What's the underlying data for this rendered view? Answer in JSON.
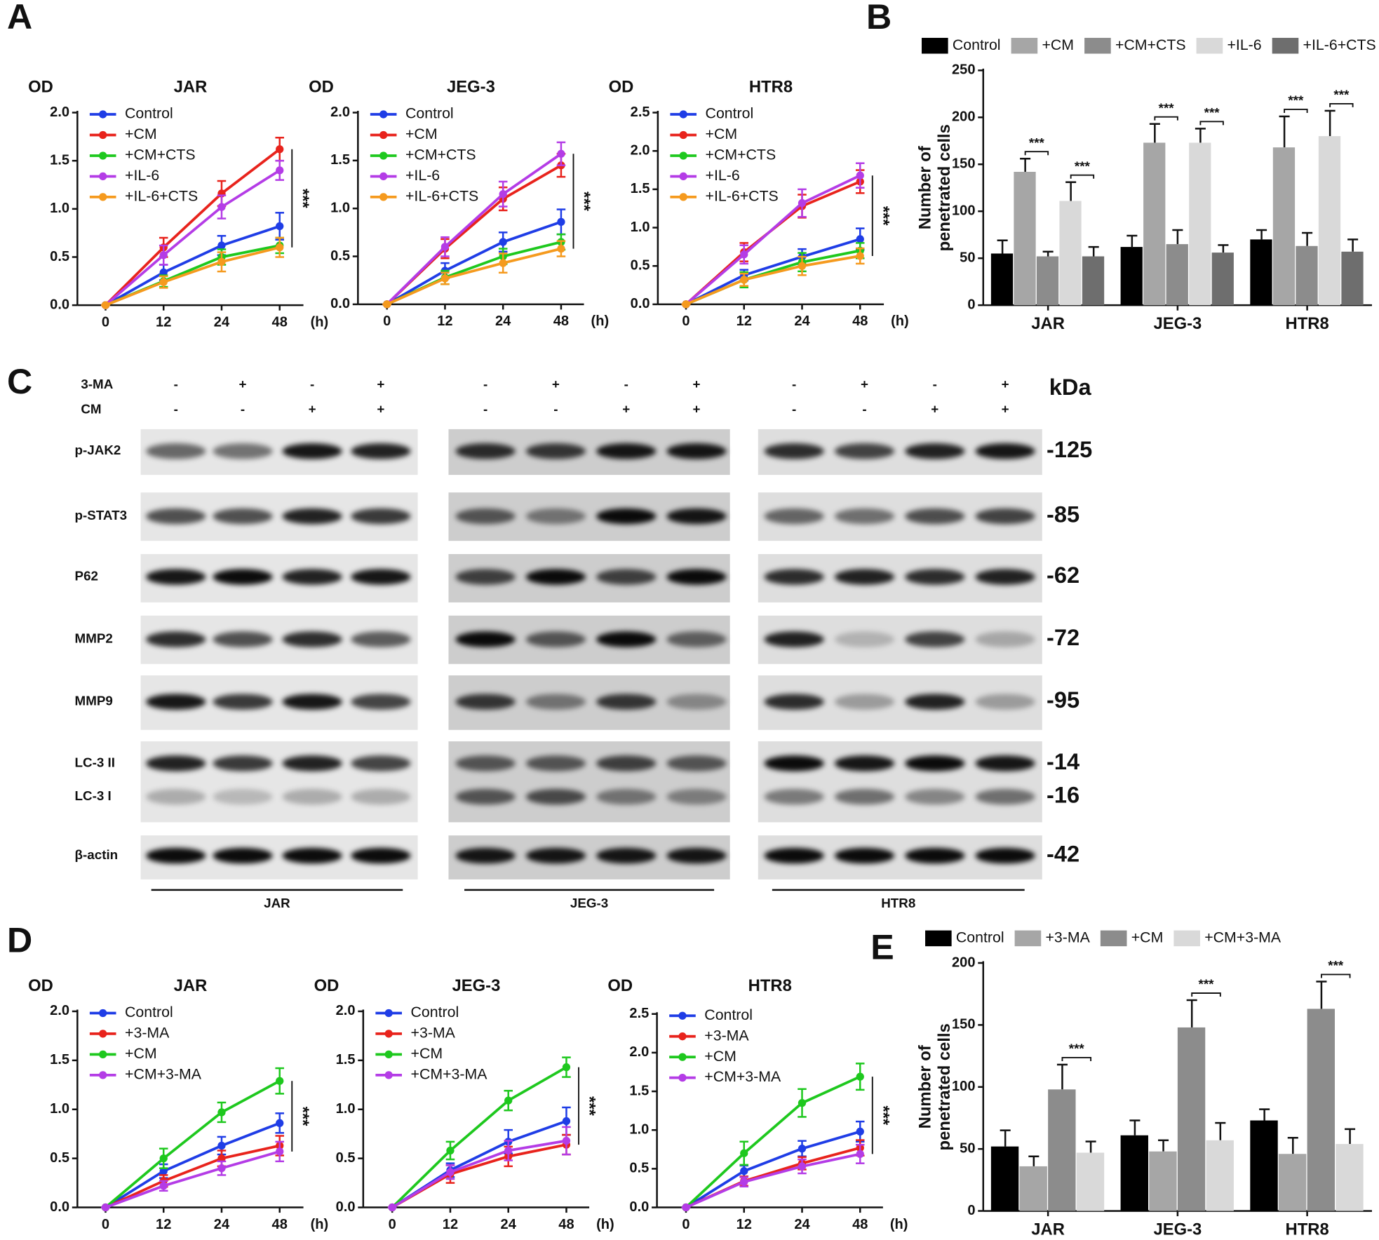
{
  "panel_labels": [
    "A",
    "B",
    "C",
    "D",
    "E"
  ],
  "chart_data": [
    {
      "type": "line",
      "title": "JAR",
      "ylabel": "OD",
      "xlabel": "(h)",
      "categories": [
        "0",
        "12",
        "24",
        "48"
      ],
      "ylim": [
        0,
        2.0
      ],
      "yticks": [
        {
          "value": 0,
          "label": "0.0"
        },
        0.5,
        {
          "value": 1,
          "label": "1.0"
        },
        1.5,
        {
          "value": 2,
          "label": "2.0"
        }
      ],
      "annotation": "***",
      "series": [
        {
          "name": "Control",
          "color": "#1f3de6",
          "values": [
            0,
            0.34,
            0.62,
            0.82
          ],
          "errors": [
            0,
            0.08,
            0.1,
            0.14
          ]
        },
        {
          "name": "+CM",
          "color": "#e8231c",
          "values": [
            0,
            0.6,
            1.16,
            1.62
          ],
          "errors": [
            0,
            0.1,
            0.13,
            0.12
          ]
        },
        {
          "name": "+CM+CTS",
          "color": "#1ec81e",
          "values": [
            0,
            0.25,
            0.5,
            0.62
          ],
          "errors": [
            0,
            0.06,
            0.08,
            0.08
          ]
        },
        {
          "name": "+IL-6",
          "color": "#b43ce6",
          "values": [
            0,
            0.52,
            1.02,
            1.4
          ],
          "errors": [
            0,
            0.1,
            0.12,
            0.1
          ]
        },
        {
          "name": "+IL-6+CTS",
          "color": "#f59a1e",
          "values": [
            0,
            0.24,
            0.45,
            0.6
          ],
          "errors": [
            0,
            0.06,
            0.1,
            0.1
          ]
        }
      ]
    },
    {
      "type": "line",
      "title": "JEG-3",
      "ylabel": "OD",
      "xlabel": "(h)",
      "categories": [
        "0",
        "12",
        "24",
        "48"
      ],
      "ylim": [
        0,
        2.0
      ],
      "yticks": [
        {
          "value": 0,
          "label": "0.0"
        },
        0.5,
        {
          "value": 1,
          "label": "1.0"
        },
        1.5,
        {
          "value": 2,
          "label": "2.0"
        }
      ],
      "annotation": "***",
      "series": [
        {
          "name": "Control",
          "color": "#1f3de6",
          "values": [
            0,
            0.35,
            0.65,
            0.86
          ],
          "errors": [
            0,
            0.08,
            0.1,
            0.13
          ]
        },
        {
          "name": "+CM",
          "color": "#e8231c",
          "values": [
            0,
            0.58,
            1.1,
            1.45
          ],
          "errors": [
            0,
            0.1,
            0.12,
            0.12
          ]
        },
        {
          "name": "+CM+CTS",
          "color": "#1ec81e",
          "values": [
            0,
            0.28,
            0.5,
            0.65
          ],
          "errors": [
            0,
            0.07,
            0.08,
            0.08
          ]
        },
        {
          "name": "+IL-6",
          "color": "#b43ce6",
          "values": [
            0,
            0.6,
            1.15,
            1.57
          ],
          "errors": [
            0,
            0.1,
            0.13,
            0.12
          ]
        },
        {
          "name": "+IL-6+CTS",
          "color": "#f59a1e",
          "values": [
            0,
            0.27,
            0.43,
            0.58
          ],
          "errors": [
            0,
            0.06,
            0.1,
            0.08
          ]
        }
      ]
    },
    {
      "type": "line",
      "title": "HTR8",
      "ylabel": "OD",
      "xlabel": "(h)",
      "categories": [
        "0",
        "12",
        "24",
        "48"
      ],
      "ylim": [
        0,
        2.5
      ],
      "yticks": [
        {
          "value": 0,
          "label": "0.0"
        },
        0.5,
        {
          "value": 1,
          "label": "1.0"
        },
        1.5,
        {
          "value": 2,
          "label": "2.0"
        },
        2.5
      ],
      "annotation": "***",
      "series": [
        {
          "name": "Control",
          "color": "#1f3de6",
          "values": [
            0,
            0.38,
            0.62,
            0.85
          ],
          "errors": [
            0,
            0.07,
            0.1,
            0.14
          ]
        },
        {
          "name": "+CM",
          "color": "#e8231c",
          "values": [
            0,
            0.68,
            1.28,
            1.6
          ],
          "errors": [
            0,
            0.12,
            0.15,
            0.15
          ]
        },
        {
          "name": "+CM+CTS",
          "color": "#1ec81e",
          "values": [
            0,
            0.32,
            0.55,
            0.7
          ],
          "errors": [
            0,
            0.1,
            0.12,
            0.1
          ]
        },
        {
          "name": "+IL-6",
          "color": "#b43ce6",
          "values": [
            0,
            0.65,
            1.32,
            1.68
          ],
          "errors": [
            0,
            0.12,
            0.18,
            0.16
          ]
        },
        {
          "name": "+IL-6+CTS",
          "color": "#f59a1e",
          "values": [
            0,
            0.32,
            0.5,
            0.63
          ],
          "errors": [
            0,
            0.08,
            0.12,
            0.1
          ]
        }
      ]
    },
    {
      "type": "bar",
      "ylabel": [
        "Number of",
        "penetrated cells"
      ],
      "categories": [
        "JAR",
        "JEG-3",
        "HTR8"
      ],
      "ylim": [
        0,
        250
      ],
      "yticks": [
        0,
        50,
        100,
        150,
        200,
        250
      ],
      "annotation": "***",
      "comparisons": [
        [
          "+CM",
          "+CM+CTS"
        ],
        [
          "+IL-6",
          "+IL-6+CTS"
        ]
      ],
      "series": [
        {
          "name": "Control",
          "color": "#000000",
          "values": [
            55,
            62,
            70
          ],
          "errors": [
            14,
            12,
            10
          ]
        },
        {
          "name": "+CM",
          "color": "#a6a6a6",
          "values": [
            142,
            173,
            168
          ],
          "errors": [
            14,
            20,
            33
          ]
        },
        {
          "name": "+CM+CTS",
          "color": "#8c8c8c",
          "values": [
            52,
            65,
            63
          ],
          "errors": [
            5,
            15,
            14
          ]
        },
        {
          "name": "+IL-6",
          "color": "#d9d9d9",
          "values": [
            111,
            173,
            180
          ],
          "errors": [
            20,
            15,
            27
          ]
        },
        {
          "name": "+IL-6+CTS",
          "color": "#6e6e6e",
          "values": [
            52,
            56,
            57
          ],
          "errors": [
            10,
            8,
            13
          ]
        }
      ]
    },
    {
      "type": "line",
      "title": "JAR",
      "ylabel": "OD",
      "xlabel": "(h)",
      "categories": [
        "0",
        "12",
        "24",
        "48"
      ],
      "ylim": [
        0,
        2.0
      ],
      "yticks": [
        {
          "value": 0,
          "label": "0.0"
        },
        0.5,
        {
          "value": 1,
          "label": "1.0"
        },
        1.5,
        {
          "value": 2,
          "label": "2.0"
        }
      ],
      "annotation": "***",
      "series": [
        {
          "name": "Control",
          "color": "#1f3de6",
          "values": [
            0,
            0.37,
            0.63,
            0.86
          ],
          "errors": [
            0,
            0.07,
            0.09,
            0.1
          ]
        },
        {
          "name": "+3-MA",
          "color": "#e8231c",
          "values": [
            0,
            0.27,
            0.5,
            0.63
          ],
          "errors": [
            0,
            0.06,
            0.08,
            0.1
          ]
        },
        {
          "name": "+CM",
          "color": "#1ec81e",
          "values": [
            0,
            0.5,
            0.97,
            1.29
          ],
          "errors": [
            0,
            0.1,
            0.1,
            0.13
          ]
        },
        {
          "name": "+CM+3-MA",
          "color": "#b43ce6",
          "values": [
            0,
            0.22,
            0.4,
            0.57
          ],
          "errors": [
            0,
            0.05,
            0.07,
            0.1
          ]
        }
      ]
    },
    {
      "type": "line",
      "title": "JEG-3",
      "ylabel": "OD",
      "xlabel": "(h)",
      "categories": [
        "0",
        "12",
        "24",
        "48"
      ],
      "ylim": [
        0,
        2.0
      ],
      "yticks": [
        {
          "value": 0,
          "label": "0.0"
        },
        0.5,
        {
          "value": 1,
          "label": "1.0"
        },
        1.5,
        {
          "value": 2,
          "label": "2.0"
        }
      ],
      "annotation": "***",
      "series": [
        {
          "name": "Control",
          "color": "#1f3de6",
          "values": [
            0,
            0.38,
            0.67,
            0.88
          ],
          "errors": [
            0,
            0.07,
            0.12,
            0.14
          ]
        },
        {
          "name": "+3-MA",
          "color": "#e8231c",
          "values": [
            0,
            0.34,
            0.52,
            0.64
          ],
          "errors": [
            0,
            0.09,
            0.1,
            0.1
          ]
        },
        {
          "name": "+CM",
          "color": "#1ec81e",
          "values": [
            0,
            0.58,
            1.09,
            1.43
          ],
          "errors": [
            0,
            0.09,
            0.1,
            0.1
          ]
        },
        {
          "name": "+CM+3-MA",
          "color": "#b43ce6",
          "values": [
            0,
            0.36,
            0.58,
            0.68
          ],
          "errors": [
            0,
            0.07,
            0.1,
            0.14
          ]
        }
      ]
    },
    {
      "type": "line",
      "title": "HTR8",
      "ylabel": "OD",
      "xlabel": "(h)",
      "categories": [
        "0",
        "12",
        "24",
        "48"
      ],
      "ylim": [
        0,
        2.5
      ],
      "yticks": [
        {
          "value": 0,
          "label": "0.0"
        },
        0.5,
        {
          "value": 1,
          "label": "1.0"
        },
        1.5,
        {
          "value": 2,
          "label": "2.0"
        },
        2.5
      ],
      "annotation": "***",
      "series": [
        {
          "name": "Control",
          "color": "#1f3de6",
          "values": [
            0,
            0.47,
            0.76,
            0.98
          ],
          "errors": [
            0,
            0.07,
            0.1,
            0.13
          ]
        },
        {
          "name": "+3-MA",
          "color": "#e8231c",
          "values": [
            0,
            0.34,
            0.57,
            0.77
          ],
          "errors": [
            0,
            0.06,
            0.08,
            0.1
          ]
        },
        {
          "name": "+CM",
          "color": "#1ec81e",
          "values": [
            0,
            0.7,
            1.35,
            1.69
          ],
          "errors": [
            0,
            0.15,
            0.18,
            0.17
          ]
        },
        {
          "name": "+CM+3-MA",
          "color": "#b43ce6",
          "values": [
            0,
            0.33,
            0.53,
            0.69
          ],
          "errors": [
            0,
            0.06,
            0.09,
            0.12
          ]
        }
      ]
    },
    {
      "type": "bar",
      "ylabel": [
        "Number of",
        "penetrated cells"
      ],
      "categories": [
        "JAR",
        "JEG-3",
        "HTR8"
      ],
      "ylim": [
        0,
        200
      ],
      "yticks": [
        0,
        50,
        100,
        150,
        200
      ],
      "annotation": "***",
      "comparisons": [
        [
          "+CM",
          "+CM+3-MA"
        ]
      ],
      "series": [
        {
          "name": "Control",
          "color": "#000000",
          "values": [
            52,
            61,
            73
          ],
          "errors": [
            13,
            12,
            9
          ]
        },
        {
          "name": "+3-MA",
          "color": "#a6a6a6",
          "values": [
            36,
            48,
            46
          ],
          "errors": [
            8,
            9,
            13
          ]
        },
        {
          "name": "+CM",
          "color": "#8c8c8c",
          "values": [
            98,
            148,
            163
          ],
          "errors": [
            20,
            22,
            22
          ]
        },
        {
          "name": "+CM+3-MA",
          "color": "#d9d9d9",
          "values": [
            47,
            57,
            54
          ],
          "errors": [
            9,
            14,
            12
          ]
        }
      ]
    }
  ],
  "blot": {
    "conditions": [
      {
        "label": "3-MA",
        "signs": [
          "-",
          "+",
          "-",
          "+",
          "-",
          "+",
          "-",
          "+",
          "-",
          "+",
          "-",
          "+"
        ]
      },
      {
        "label": "CM",
        "signs": [
          "-",
          "-",
          "+",
          "+",
          "-",
          "-",
          "+",
          "+",
          "-",
          "-",
          "+",
          "+"
        ]
      }
    ],
    "kda_label": "kDa",
    "proteins": [
      "p-JAK2",
      "p-STAT3",
      "P62",
      "MMP2",
      "MMP9",
      "LC-3 II",
      "LC-3 I",
      "β-actin"
    ],
    "kda": [
      "-125",
      "-85",
      "-62",
      "-72",
      "-95",
      "-14",
      "-16",
      "-42"
    ],
    "cell_lines": [
      "JAR",
      "JEG-3",
      "HTR8"
    ]
  }
}
